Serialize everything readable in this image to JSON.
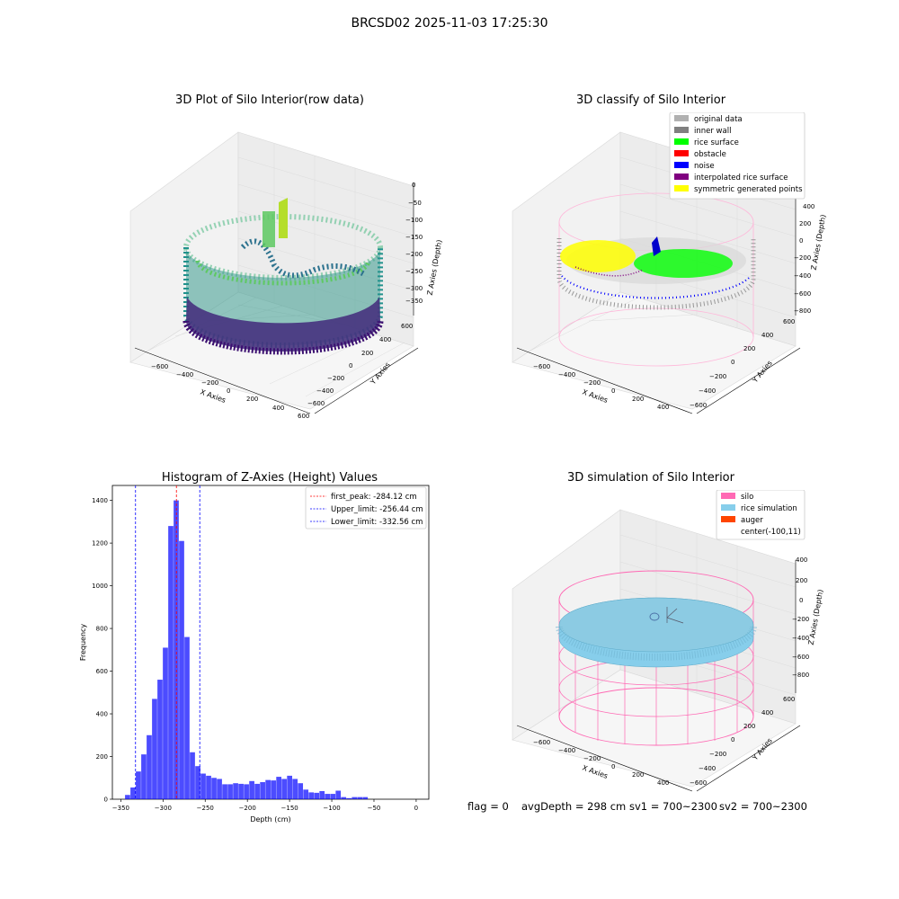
{
  "suptitle": "BRCSD02 2025-11-03 17:25:30",
  "panels": {
    "raw": {
      "title": "3D Plot of Silo Interior(row data)",
      "xlabel": "X Axies",
      "ylabel": "Y Axies",
      "zlabel": "Z Axies (Depth)",
      "xticks": [
        "−600",
        "−400",
        "−200",
        "0",
        "200",
        "400",
        "600"
      ],
      "yticks": [
        "600",
        "400",
        "200",
        "0",
        "−200",
        "−400",
        "−600"
      ],
      "zticks": [
        "0",
        "−50",
        "−100",
        "−150",
        "−200",
        "−250",
        "−300",
        "−350"
      ]
    },
    "classify": {
      "title": "3D classify of Silo Interior",
      "xlabel": "X Axies",
      "ylabel": "Y Axies",
      "zlabel": "Z Axies (Depth)",
      "xticks": [
        "−600",
        "−400",
        "−200",
        "0",
        "200",
        "400"
      ],
      "yticks": [
        "600",
        "400",
        "200",
        "0",
        "−200",
        "−400",
        "−600"
      ],
      "zticks": [
        "400",
        "200",
        "0",
        "−200",
        "−400",
        "−600",
        "−800"
      ],
      "legend": [
        {
          "label": "original data",
          "color": "#b0b0b0"
        },
        {
          "label": "inner wall",
          "color": "#808080"
        },
        {
          "label": "rice surface",
          "color": "#00ff00"
        },
        {
          "label": "obstacle",
          "color": "#ff0000"
        },
        {
          "label": "noise",
          "color": "#0000ff"
        },
        {
          "label": "interpolated rice surface",
          "color": "#800080"
        },
        {
          "label": "symmetric generated points",
          "color": "#ffff00"
        }
      ]
    },
    "simulation": {
      "title": "3D simulation of Silo Interior",
      "xlabel": "X Axies",
      "ylabel": "Y Axies",
      "zlabel": "Z Axies (Depth)",
      "xticks": [
        "−600",
        "−400",
        "−200",
        "0",
        "200",
        "400"
      ],
      "yticks": [
        "600",
        "400",
        "200",
        "0",
        "−200",
        "−400",
        "−600"
      ],
      "zticks": [
        "400",
        "200",
        "0",
        "−200",
        "−400",
        "−600",
        "−800"
      ],
      "legend": [
        {
          "label": "silo",
          "color": "#ff69b4"
        },
        {
          "label": "rice simulation",
          "color": "#87ceeb"
        },
        {
          "label": "auger",
          "color": "#ff4500"
        },
        {
          "label": "center(-100,11)",
          "color": ""
        }
      ]
    }
  },
  "chart_data": {
    "type": "bar",
    "title": "Histogram of Z-Axies (Height) Values",
    "xlabel": "Depth (cm)",
    "ylabel": "Frequency",
    "xlim": [
      -360,
      15
    ],
    "ylim": [
      0,
      1470
    ],
    "xticks": [
      -350,
      -300,
      -250,
      -200,
      -150,
      -100,
      -50,
      0
    ],
    "yticks": [
      0,
      200,
      400,
      600,
      800,
      1000,
      1200,
      1400
    ],
    "bar_color": "#0000ff",
    "bin_start": -345,
    "bin_width": 6.4,
    "values": [
      20,
      55,
      130,
      210,
      300,
      470,
      560,
      710,
      1280,
      1400,
      1210,
      760,
      220,
      155,
      120,
      110,
      100,
      95,
      70,
      70,
      75,
      72,
      70,
      85,
      72,
      80,
      90,
      88,
      105,
      95,
      110,
      95,
      75,
      45,
      32,
      30,
      38,
      25,
      25,
      40,
      10,
      5,
      10,
      10,
      10
    ],
    "vlines": [
      {
        "name": "first_peak: -284.12 cm",
        "x": -284.12,
        "color": "#ff0000"
      },
      {
        "name": "Upper_limit: -256.44 cm",
        "x": -256.44,
        "color": "#0000ff"
      },
      {
        "name": "Lower_limit: -332.56 cm",
        "x": -332.56,
        "color": "#0000ff"
      }
    ],
    "legend_position": "top-right"
  },
  "footer": {
    "flag": "flag = 0",
    "avgdepth": "avgDepth = 298 cm",
    "sv1": "sv1 = 700~2300",
    "sv2": "sv2 = 700~2300"
  }
}
